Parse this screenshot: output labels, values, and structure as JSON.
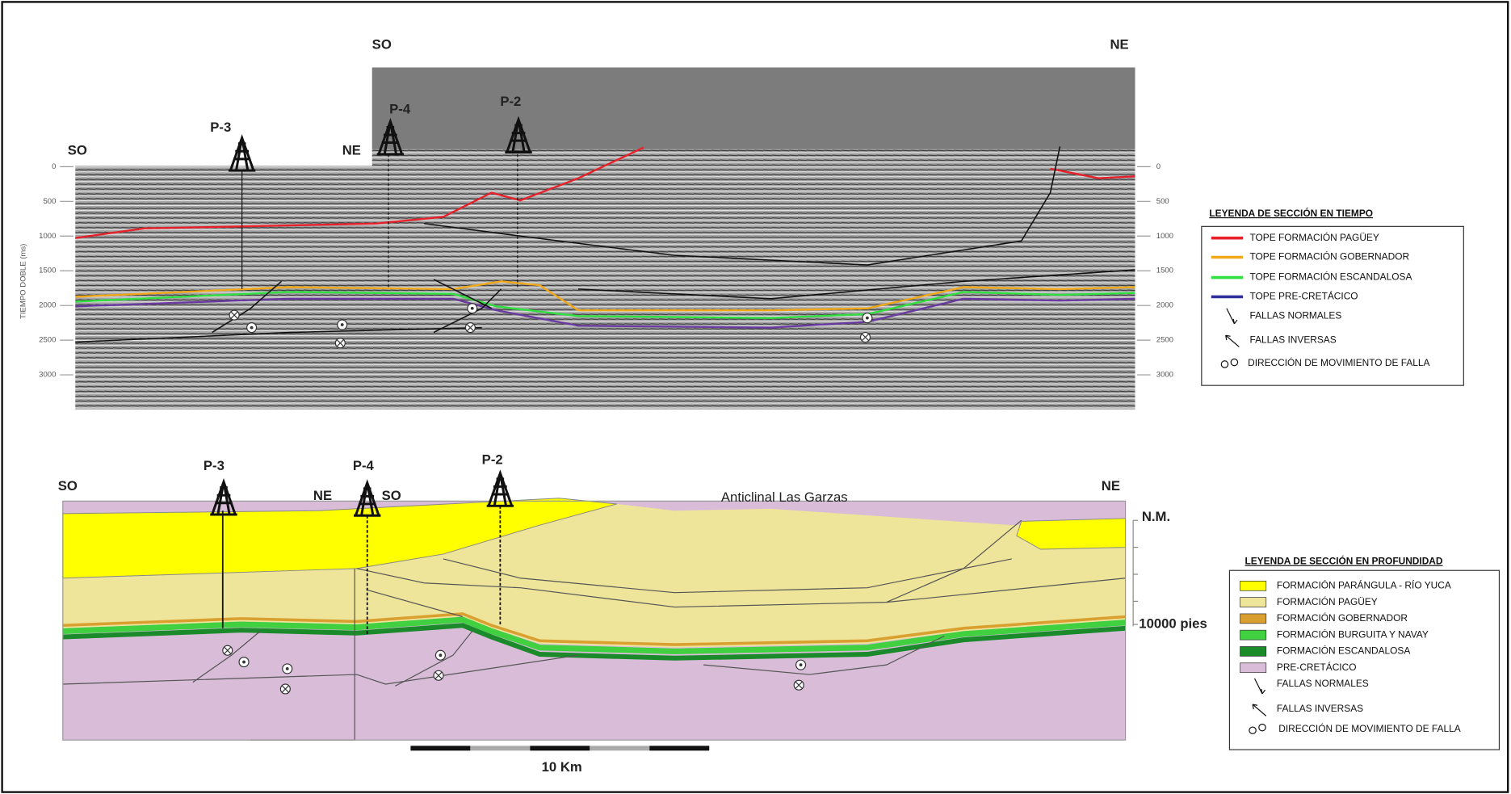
{
  "time_section": {
    "labels": {
      "left_so": "SO",
      "left_ne": "NE",
      "right_so": "SO",
      "right_ne": "NE"
    },
    "wells": {
      "p3": "P-3",
      "p4": "P-4",
      "p2": "P-2"
    },
    "axis_label": "TIEMPO DOBLE (ms)",
    "ticks": [
      0,
      500,
      1000,
      1500,
      2000,
      2500,
      3000
    ],
    "legend": {
      "title": "LEYENDA DE SECCIÓN EN TIEMPO",
      "items": [
        {
          "label": "TOPE FORMACIÓN PAGÜEY",
          "color": "#e8202a"
        },
        {
          "label": "TOPE FORMACIÓN GOBERNADOR",
          "color": "#f0a818"
        },
        {
          "label": "TOPE FORMACIÓN ESCANDALOSA",
          "color": "#30e040"
        },
        {
          "label": "TOPE PRE-CRETÁCICO",
          "color": "#30309a"
        },
        {
          "label": "FALLAS NORMALES"
        },
        {
          "label": "FALLAS INVERSAS"
        },
        {
          "label": "DIRECCIÓN DE MOVIMIENTO DE FALLA"
        }
      ]
    }
  },
  "depth_section": {
    "labels": {
      "left_so": "SO",
      "left_ne": "NE",
      "right_so": "SO",
      "right_ne": "NE",
      "anticline": "Anticlinal Las Garzas",
      "datum": "N.M.",
      "depth": "10000 pies"
    },
    "wells": {
      "p3": "P-3",
      "p4": "P-4",
      "p2": "P-2"
    },
    "scale_label": "10 Km",
    "legend": {
      "title": "LEYENDA DE SECCIÓN EN PROFUNDIDAD",
      "items": [
        {
          "label": "FORMACIÓN PARÁNGULA - RÍO YUCA",
          "color": "#ffff00"
        },
        {
          "label": "FORMACIÓN PAGÜEY",
          "color": "#eee49a"
        },
        {
          "label": "FORMACIÓN GOBERNADOR",
          "color": "#d9a030"
        },
        {
          "label": "FORMACIÓN  BURGUITA Y NAVAY",
          "color": "#40d040"
        },
        {
          "label": "FORMACIÓN ESCANDALOSA",
          "color": "#1a8a2a"
        },
        {
          "label": "PRE-CRETÁCICO",
          "color": "#d8bcd8"
        },
        {
          "label": "FALLAS NORMALES"
        },
        {
          "label": "FALLAS INVERSAS"
        },
        {
          "label": "DIRECCIÓN DE MOVIMIENTO DE FALLA"
        }
      ]
    }
  }
}
